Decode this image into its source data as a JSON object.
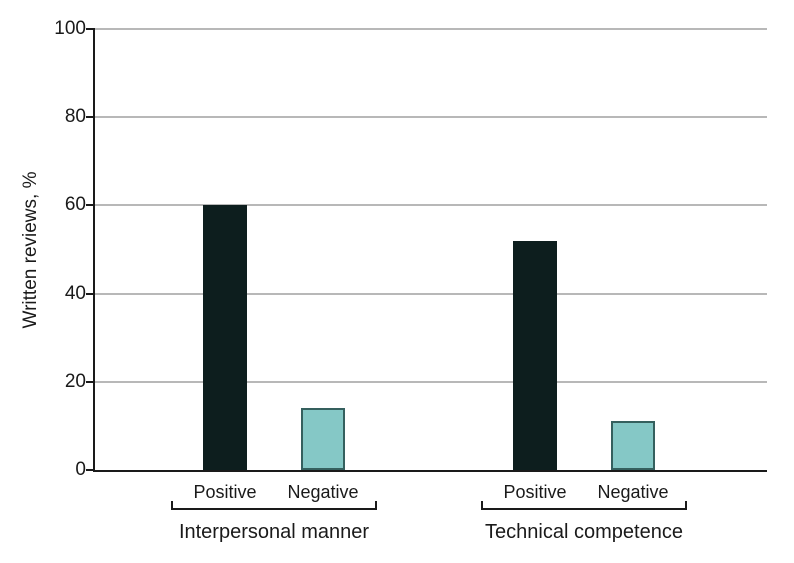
{
  "chart_data": {
    "type": "bar",
    "title": "",
    "xlabel": "",
    "ylabel": "Written reviews, %",
    "ylim": [
      0,
      100
    ],
    "yticks": [
      0,
      20,
      40,
      60,
      80,
      100
    ],
    "grid": "horizontal",
    "legend_position": "none",
    "categories": [
      "Interpersonal manner",
      "Technical competence"
    ],
    "bar_labels": [
      "Positive",
      "Negative"
    ],
    "series": [
      {
        "name": "Positive",
        "values": [
          60,
          52
        ],
        "fill": "#0d1e1e",
        "border": "#0d1e1e"
      },
      {
        "name": "Negative",
        "values": [
          14,
          11
        ],
        "fill": "#85c8c6",
        "border": "#35605e"
      }
    ],
    "colors": {
      "axis": "#1a1a1a",
      "gridline": "#b8b8b8",
      "text": "#1a1a1a",
      "background": "#ffffff"
    }
  }
}
